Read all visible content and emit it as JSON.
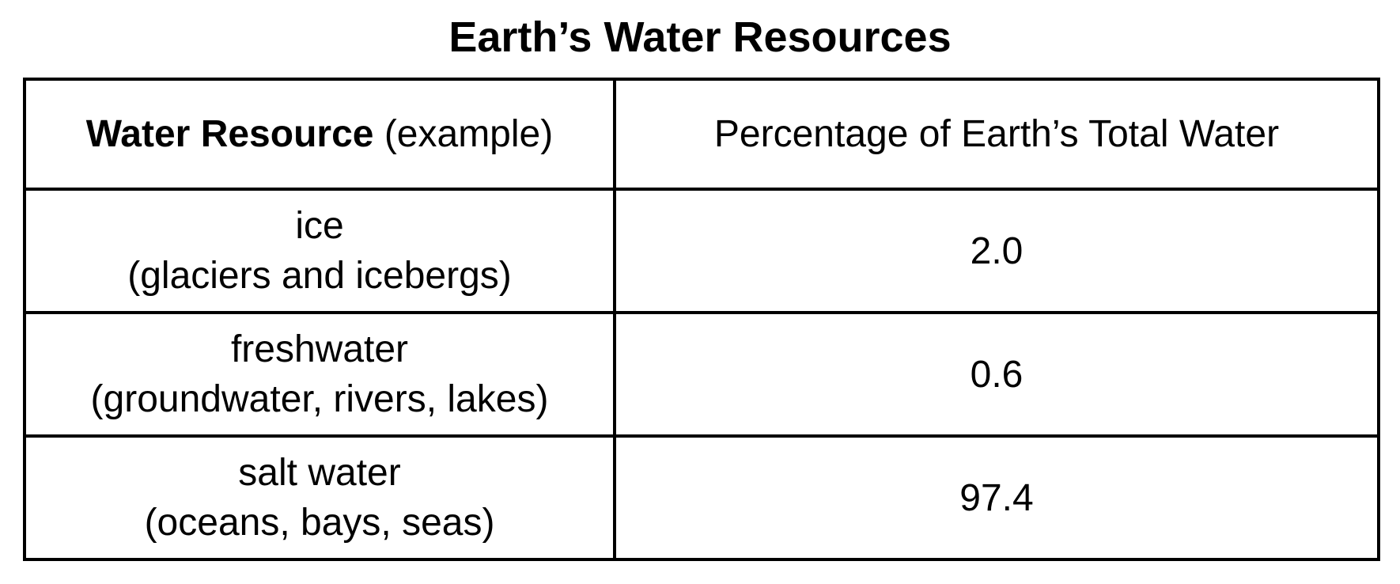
{
  "title": "Earth’s Water Resources",
  "table": {
    "header": {
      "resource_bold": "Water Resource",
      "resource_normal": "(example)",
      "percentage": "Percentage of Earth’s Total Water"
    },
    "rows": [
      {
        "resource": "ice",
        "example": "(glaciers and icebergs)",
        "percentage": "2.0"
      },
      {
        "resource": "freshwater",
        "example": "(groundwater, rivers, lakes)",
        "percentage": "0.6"
      },
      {
        "resource": "salt water",
        "example": "(oceans, bays, seas)",
        "percentage": "97.4"
      }
    ]
  }
}
